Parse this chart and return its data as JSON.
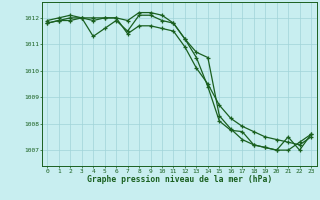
{
  "title": "Graphe pression niveau de la mer (hPa)",
  "bg_color": "#c8eef0",
  "grid_color": "#a0d4d8",
  "line_color": "#1a6020",
  "marker_color": "#1a6020",
  "xlim": [
    -0.5,
    23.5
  ],
  "ylim": [
    1006.4,
    1012.6
  ],
  "xticks": [
    0,
    1,
    2,
    3,
    4,
    5,
    6,
    7,
    8,
    9,
    10,
    11,
    12,
    13,
    14,
    15,
    16,
    17,
    18,
    19,
    20,
    21,
    22,
    23
  ],
  "yticks": [
    1007,
    1008,
    1009,
    1010,
    1011,
    1012
  ],
  "series1": [
    1011.8,
    1011.9,
    1011.9,
    1012.0,
    1011.3,
    1011.6,
    1011.9,
    1011.5,
    1012.1,
    1012.1,
    1011.9,
    1011.8,
    1011.2,
    1010.5,
    1009.4,
    1008.1,
    1007.75,
    1007.7,
    1007.2,
    1007.1,
    1007.0,
    1007.0,
    1007.3,
    1007.6
  ],
  "series2": [
    1011.8,
    1011.9,
    1012.0,
    1012.0,
    1012.0,
    1012.0,
    1012.0,
    1011.9,
    1012.2,
    1012.2,
    1012.1,
    1011.8,
    1011.2,
    1010.7,
    1010.5,
    1008.3,
    1007.8,
    1007.4,
    1007.2,
    1007.1,
    1007.0,
    1007.5,
    1007.0,
    1007.6
  ],
  "series3": [
    1011.9,
    1012.0,
    1012.1,
    1012.0,
    1011.9,
    1012.0,
    1012.0,
    1011.4,
    1011.7,
    1011.7,
    1011.6,
    1011.5,
    1010.9,
    1010.1,
    1009.5,
    1008.7,
    1008.2,
    1007.9,
    1007.7,
    1007.5,
    1007.4,
    1007.3,
    1007.2,
    1007.5
  ]
}
